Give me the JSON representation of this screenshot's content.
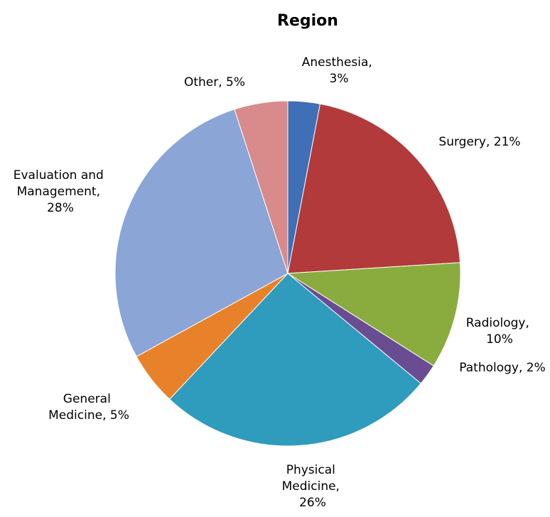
{
  "chart_data": {
    "type": "pie",
    "title": "Region",
    "categories": [
      "Anesthesia",
      "Surgery",
      "Radiology",
      "Pathology",
      "Physical Medicine",
      "General Medicine",
      "Evaluation and Management",
      "Other"
    ],
    "values": [
      3,
      21,
      10,
      2,
      26,
      5,
      28,
      5
    ],
    "value_labels": [
      "Anesthesia, 3%",
      "Surgery, 21%",
      "Radiology, 10%",
      "Pathology, 2%",
      "Physical Medicine, 26%",
      "General Medicine, 5%",
      "Evaluation and Management, 28%",
      "Other, 5%"
    ],
    "colors": [
      "#3f6fb5",
      "#b23a3a",
      "#8aac3f",
      "#6a4c93",
      "#2f9bbd",
      "#e8822a",
      "#8aa5d6",
      "#d98a8a"
    ]
  }
}
